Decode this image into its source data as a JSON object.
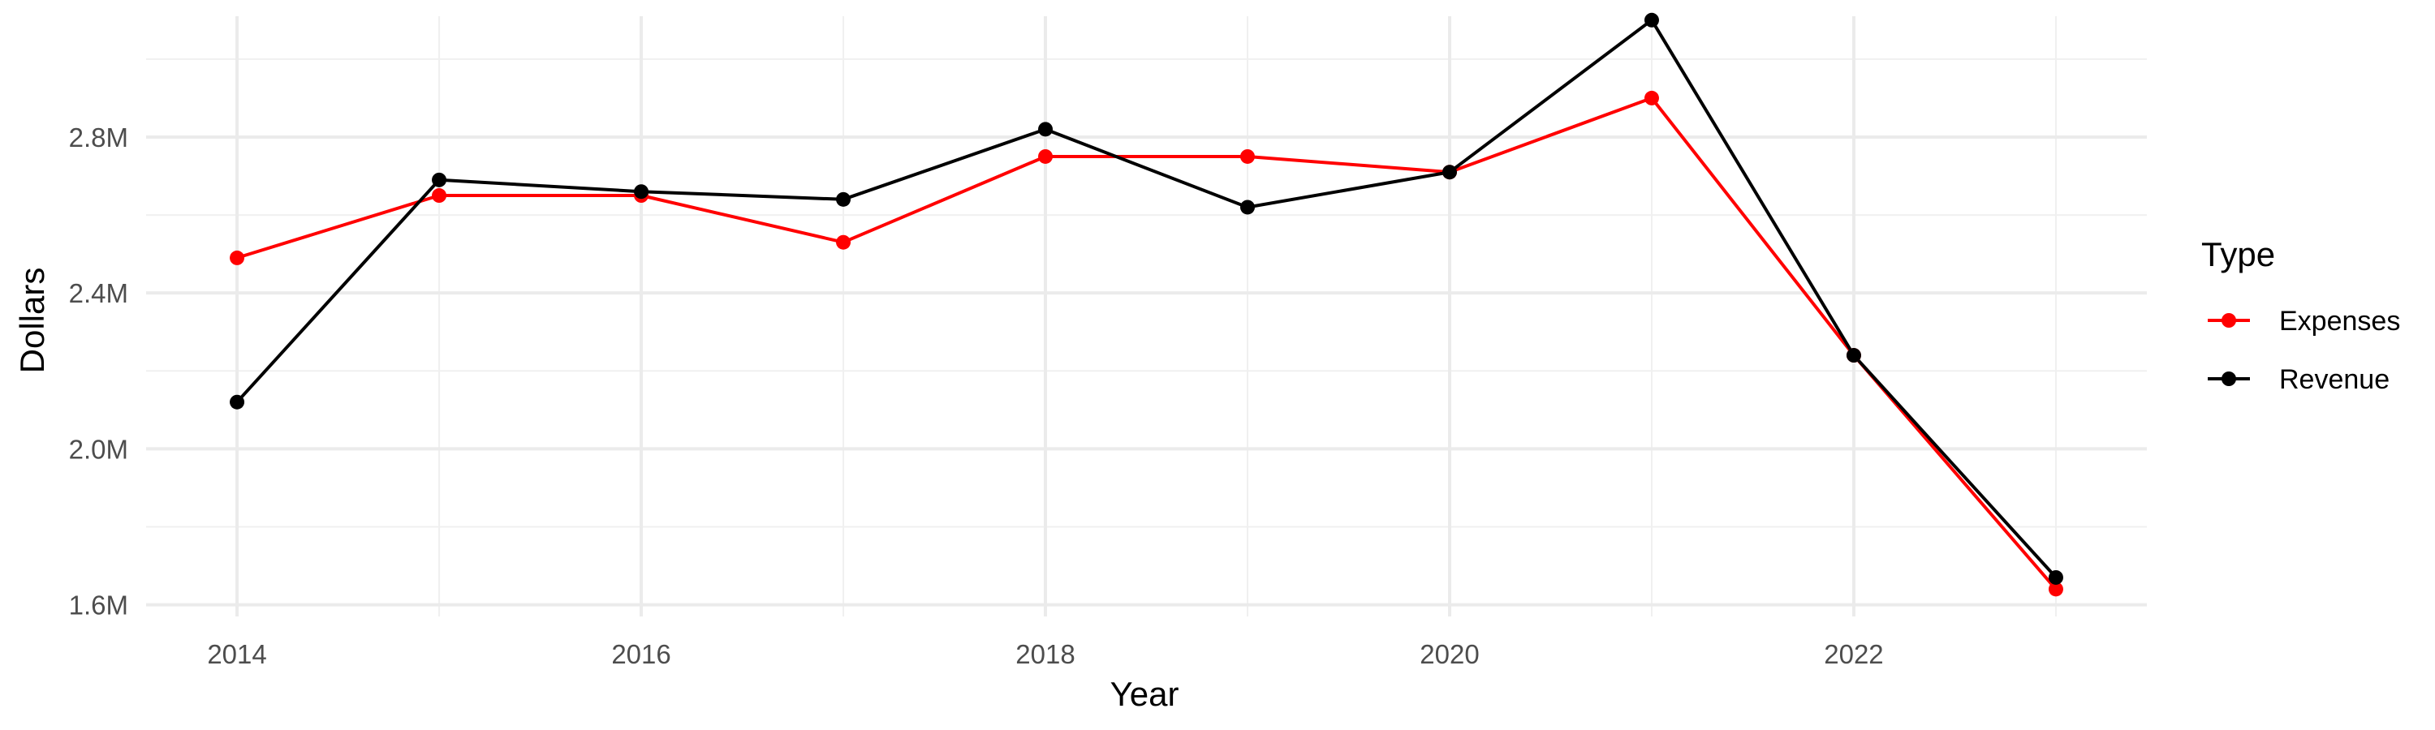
{
  "chart_data": {
    "type": "line",
    "title": "",
    "xlabel": "Year",
    "ylabel": "Dollars",
    "x": [
      2014,
      2015,
      2016,
      2017,
      2018,
      2019,
      2020,
      2021,
      2022,
      2023
    ],
    "xlim": [
      2013.55,
      2023.45
    ],
    "ylim": [
      1.57,
      3.11
    ],
    "x_ticks": [
      2014,
      2016,
      2018,
      2020,
      2022
    ],
    "y_ticks": [
      1.6,
      2.0,
      2.4,
      2.8
    ],
    "y_tick_labels": [
      "1.6M",
      "2.0M",
      "2.4M",
      "2.8M"
    ],
    "grid": true,
    "legend": {
      "title": "Type",
      "position": "right"
    },
    "series": [
      {
        "name": "Expenses",
        "color": "#ff0000",
        "values": [
          2.49,
          2.65,
          2.65,
          2.53,
          2.75,
          2.75,
          2.71,
          2.9,
          2.24,
          1.64
        ]
      },
      {
        "name": "Revenue",
        "color": "#000000",
        "values": [
          2.12,
          2.69,
          2.66,
          2.64,
          2.82,
          2.62,
          2.71,
          3.1,
          2.24,
          1.67
        ]
      }
    ]
  }
}
